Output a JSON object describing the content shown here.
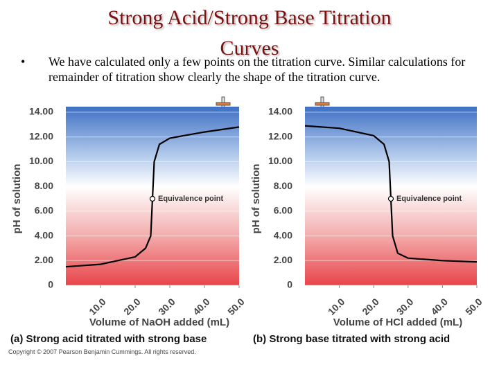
{
  "title": "Strong Acid/Strong Base Titration Curves",
  "bullet": "We have calculated only a few points on the titration curve.  Similar calculations for remainder of titration show clearly the shape of the titration curve.",
  "copyright": "Copyright © 2007 Pearson Benjamin Cummings. All rights reserved.",
  "chart_data": [
    {
      "type": "line",
      "caption": "(a) Strong acid titrated with strong base",
      "x_label": "Volume of NaOH added (mL)",
      "y_label": "pH of solution",
      "x": [
        0,
        10,
        20,
        23,
        24.5,
        25,
        25.5,
        27,
        30,
        40,
        50
      ],
      "values": [
        1.5,
        1.7,
        2.3,
        3.0,
        4.0,
        7.0,
        10.0,
        11.4,
        11.9,
        12.4,
        12.8
      ],
      "color": "#000000",
      "annotation": {
        "text": "Equivalence point",
        "x": 25,
        "y": 7
      },
      "xlim": [
        0,
        50
      ],
      "ylim": [
        0,
        14
      ],
      "xticks": [
        {
          "value": 10,
          "label": "10.0"
        },
        {
          "value": 20,
          "label": "20.0"
        },
        {
          "value": 30,
          "label": "30.0"
        },
        {
          "value": 40,
          "label": "40.0"
        },
        {
          "value": 50,
          "label": "50.0"
        }
      ],
      "yticks": [
        0,
        {
          "value": 2,
          "label": "2.00"
        },
        {
          "value": 4,
          "label": "4.00"
        },
        {
          "value": 6,
          "label": "6.00"
        },
        {
          "value": 8,
          "label": "8.00"
        },
        {
          "value": 10,
          "label": "10.00"
        },
        {
          "value": 12,
          "label": "12.00"
        },
        {
          "value": 14,
          "label": "14.00"
        }
      ],
      "grid": true
    },
    {
      "type": "line",
      "caption": "(b) Strong base titrated with strong acid",
      "x_label": "Volume of HCl added (mL)",
      "y_label": "pH of solution",
      "x": [
        0,
        10,
        20,
        23,
        24.5,
        25,
        25.5,
        27,
        30,
        40,
        50
      ],
      "values": [
        12.9,
        12.7,
        12.1,
        11.4,
        10.0,
        7.0,
        4.0,
        2.6,
        2.2,
        2.0,
        1.9
      ],
      "color": "#000000",
      "annotation": {
        "text": "Equivalence point",
        "x": 25,
        "y": 7
      },
      "xlim": [
        0,
        50
      ],
      "ylim": [
        0,
        14
      ],
      "xticks": [
        {
          "value": 10,
          "label": "10.0"
        },
        {
          "value": 20,
          "label": "20.0"
        },
        {
          "value": 30,
          "label": "30.0"
        },
        {
          "value": 40,
          "label": "40.0"
        },
        {
          "value": 50,
          "label": "50.0"
        }
      ],
      "yticks": [
        0,
        {
          "value": 2,
          "label": "2.00"
        },
        {
          "value": 4,
          "label": "4.00"
        },
        {
          "value": 6,
          "label": "6.00"
        },
        {
          "value": 8,
          "label": "8.00"
        },
        {
          "value": 10,
          "label": "10.00"
        },
        {
          "value": 12,
          "label": "12.00"
        },
        {
          "value": 14,
          "label": "14.00"
        }
      ],
      "grid": true
    }
  ]
}
